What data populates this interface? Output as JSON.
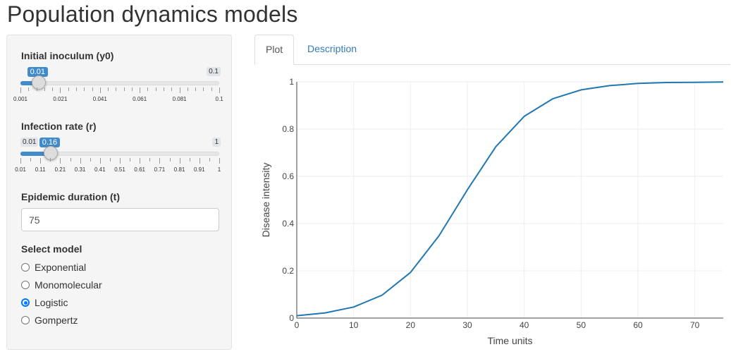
{
  "title": "Population dynamics models",
  "sliders": {
    "inoculum": {
      "label": "Initial inoculum (y0)",
      "min": 0.001,
      "max": 0.1,
      "value": 0.01,
      "min_badge": "",
      "max_badge": "0.1",
      "value_badge": "0.01",
      "ticks": [
        "0.001",
        "0.021",
        "0.041",
        "0.061",
        "0.081",
        "0.1"
      ]
    },
    "rate": {
      "label": "Infection rate (r)",
      "min": 0.01,
      "max": 1,
      "value": 0.16,
      "min_badge": "0.01",
      "max_badge": "1",
      "value_badge": "0.16",
      "ticks": [
        "0.01",
        "0.11",
        "0.21",
        "0.31",
        "0.41",
        "0.51",
        "0.61",
        "0.71",
        "0.81",
        "0.91",
        "1"
      ]
    }
  },
  "duration": {
    "label": "Epidemic duration (t)",
    "value": "75"
  },
  "model": {
    "label": "Select model",
    "options": [
      "Exponential",
      "Monomolecular",
      "Logistic",
      "Gompertz"
    ],
    "selected": "Logistic"
  },
  "tabs": [
    "Plot",
    "Description"
  ],
  "active_tab": "Plot",
  "colors": {
    "accent": "#428bca",
    "line": "#1f77b4",
    "link": "#337ab7"
  },
  "chart_data": {
    "type": "line",
    "title": "",
    "xlabel": "Time units",
    "ylabel": "Disease intensity",
    "xlim": [
      0,
      75
    ],
    "ylim": [
      0,
      1
    ],
    "xticks": [
      "0",
      "10",
      "20",
      "30",
      "40",
      "50",
      "60",
      "70"
    ],
    "yticks": [
      "0",
      "0.2",
      "0.4",
      "0.6",
      "0.8",
      "1"
    ],
    "grid": true,
    "series": [
      {
        "x": [
          0,
          5,
          10,
          15,
          20,
          25,
          30,
          35,
          40,
          45,
          50,
          55,
          60,
          65,
          70,
          75
        ],
        "y": [
          0.01,
          0.022,
          0.047,
          0.097,
          0.193,
          0.348,
          0.543,
          0.725,
          0.854,
          0.928,
          0.966,
          0.984,
          0.993,
          0.997,
          0.998,
          0.999
        ]
      }
    ]
  }
}
